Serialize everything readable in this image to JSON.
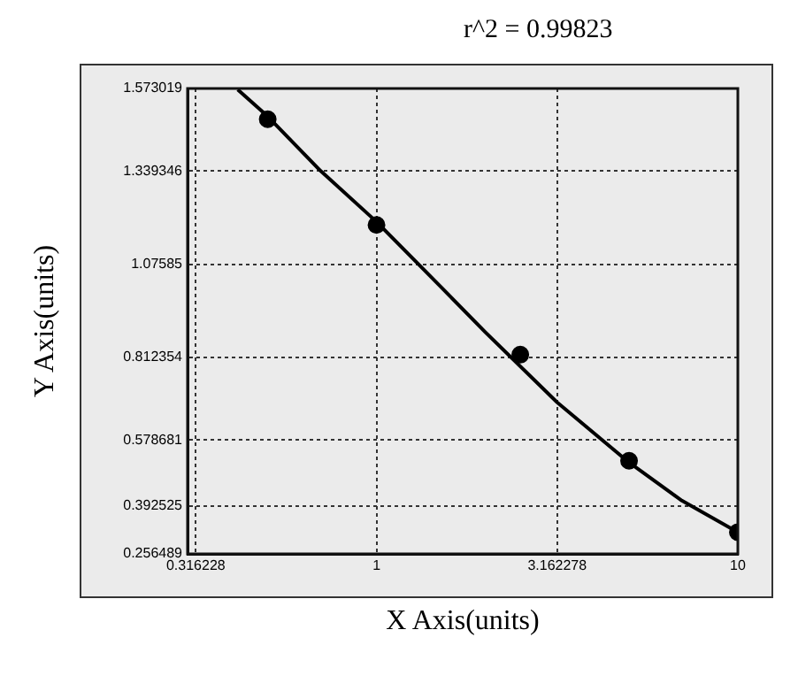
{
  "chart_data": {
    "type": "scatter",
    "xlabel": "X Axis(units)",
    "ylabel": "Y Axis(units)",
    "annotations": [
      "r^2 = 0.99823"
    ],
    "log": "x",
    "xlim": [
      0.316228,
      10
    ],
    "xticks": [
      0.316228,
      1,
      3.162278,
      10
    ],
    "ylim": [
      0.256489,
      1.573019
    ],
    "yticks": [
      0.256489,
      0.392525,
      0.578681,
      0.812354,
      1.07585,
      1.339346,
      1.573019
    ],
    "grid": true,
    "marker": "circle",
    "series": [
      {
        "type": "scatter",
        "color": "#000000",
        "x": [
          0.5,
          1,
          2.5,
          5,
          10
        ],
        "values": [
          1.486,
          1.187,
          0.82,
          0.52,
          0.318
        ]
      },
      {
        "type": "line",
        "color": "#000000",
        "x": [
          0.413,
          0.5,
          0.7,
          1,
          1.5,
          2,
          3.162278,
          5,
          7,
          10
        ],
        "values": [
          1.57,
          1.494,
          1.34,
          1.196,
          1.014,
          0.884,
          0.685,
          0.515,
          0.407,
          0.318
        ],
        "marker": "none"
      }
    ]
  }
}
